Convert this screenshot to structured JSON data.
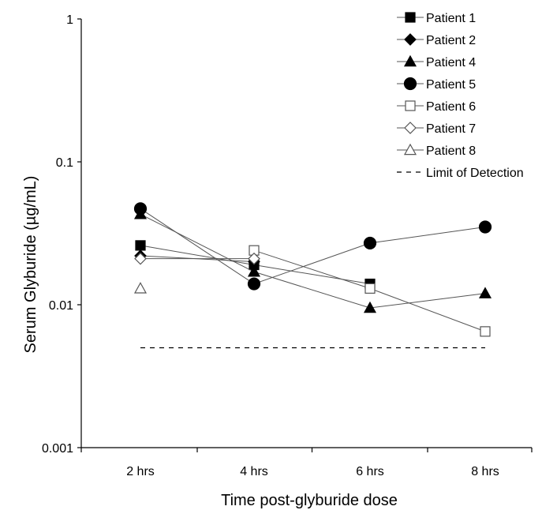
{
  "chart_data": {
    "type": "line",
    "title": "",
    "xlabel": "Time post-glyburide dose",
    "ylabel": "Serum Glyburide (µg/mL)",
    "y_scale": "log",
    "ylim": [
      0.001,
      1
    ],
    "y_ticks": [
      {
        "value": 1,
        "label": "1"
      },
      {
        "value": 0.1,
        "label": "0.1"
      },
      {
        "value": 0.01,
        "label": "0.01"
      },
      {
        "value": 0.001,
        "label": "0.001"
      }
    ],
    "categories": [
      "2 hrs",
      "4 hrs",
      "6 hrs",
      "8 hrs"
    ],
    "grid": false,
    "legend_position": "top-right",
    "series": [
      {
        "name": "Patient 1",
        "marker": "square",
        "filled": true,
        "values": [
          0.026,
          0.019,
          0.014,
          null
        ]
      },
      {
        "name": "Patient 2",
        "marker": "diamond",
        "filled": true,
        "values": [
          0.022,
          0.02,
          null,
          null
        ]
      },
      {
        "name": "Patient 4",
        "marker": "triangle",
        "filled": true,
        "values": [
          0.043,
          0.017,
          0.0095,
          0.012
        ]
      },
      {
        "name": "Patient 5",
        "marker": "circle",
        "filled": true,
        "values": [
          0.047,
          0.014,
          0.027,
          0.035
        ]
      },
      {
        "name": "Patient 6",
        "marker": "square",
        "filled": false,
        "values": [
          null,
          0.024,
          0.013,
          0.0065
        ]
      },
      {
        "name": "Patient 7",
        "marker": "diamond",
        "filled": false,
        "values": [
          0.021,
          0.021,
          null,
          null
        ]
      },
      {
        "name": "Patient 8",
        "marker": "triangle",
        "filled": false,
        "values": [
          0.013,
          null,
          null,
          null
        ]
      }
    ],
    "limit_of_detection": {
      "name": "Limit of Detection",
      "value": 0.005
    }
  },
  "colors": {
    "series_line": "#555555",
    "marker": "#000000",
    "axis": "#000000"
  }
}
